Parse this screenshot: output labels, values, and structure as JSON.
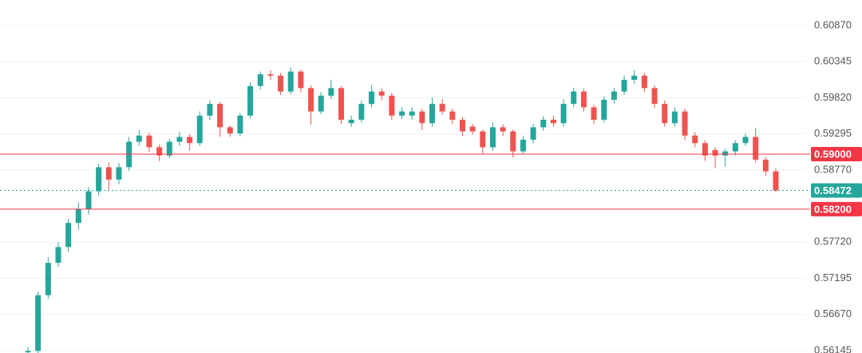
{
  "chart_data": {
    "type": "candlestick",
    "open": [
      0.5612,
      0.5614,
      0.5695,
      0.5742,
      0.5765,
      0.58,
      0.582,
      0.5846,
      0.5881,
      0.5863,
      0.5881,
      0.5918,
      0.5927,
      0.591,
      0.5898,
      0.5918,
      0.5925,
      0.5916,
      0.5956,
      0.5973,
      0.5939,
      0.593,
      0.5956,
      0.5999,
      0.6016,
      0.6014,
      0.5991,
      0.602,
      0.5996,
      0.5962,
      0.5985,
      0.5996,
      0.5945,
      0.595,
      0.5973,
      0.5991,
      0.5985,
      0.5956,
      0.5956,
      0.5962,
      0.5945,
      0.5973,
      0.5962,
      0.595,
      0.594,
      0.5933,
      0.591,
      0.5939,
      0.5933,
      0.5904,
      0.5921,
      0.5939,
      0.595,
      0.5945,
      0.5973,
      0.5991,
      0.5968,
      0.595,
      0.5979,
      0.5991,
      0.6008,
      0.6014,
      0.5996,
      0.5973,
      0.5945,
      0.5962,
      0.5927,
      0.5916,
      0.5906,
      0.5898,
      0.5904,
      0.5916,
      0.5925,
      0.5892,
      0.5875
    ],
    "high": [
      0.562,
      0.57,
      0.575,
      0.5772,
      0.5806,
      0.583,
      0.5852,
      0.5886,
      0.5888,
      0.5887,
      0.5925,
      0.5935,
      0.5931,
      0.5914,
      0.5922,
      0.5932,
      0.5929,
      0.5962,
      0.5978,
      0.5976,
      0.5942,
      0.596,
      0.6004,
      0.602,
      0.6022,
      0.6018,
      0.6026,
      0.6023,
      0.6,
      0.599,
      0.6008,
      0.5999,
      0.5956,
      0.5978,
      0.6,
      0.5996,
      0.5989,
      0.5968,
      0.5968,
      0.5966,
      0.5982,
      0.598,
      0.5966,
      0.5954,
      0.5944,
      0.5936,
      0.5946,
      0.5943,
      0.5936,
      0.5926,
      0.5944,
      0.5955,
      0.5956,
      0.598,
      0.5996,
      0.5995,
      0.5972,
      0.5984,
      0.5996,
      0.6014,
      0.6022,
      0.6018,
      0.6,
      0.5978,
      0.5968,
      0.5966,
      0.5932,
      0.592,
      0.591,
      0.5908,
      0.592,
      0.593,
      0.5938,
      0.5896,
      0.5879
    ],
    "low": [
      0.5611,
      0.5611,
      0.569,
      0.5736,
      0.5758,
      0.579,
      0.5812,
      0.584,
      0.5848,
      0.5856,
      0.5876,
      0.5912,
      0.5903,
      0.589,
      0.5894,
      0.5912,
      0.5905,
      0.5912,
      0.595,
      0.5925,
      0.5925,
      0.5926,
      0.5952,
      0.5994,
      0.6008,
      0.5986,
      0.5987,
      0.599,
      0.5943,
      0.5958,
      0.598,
      0.5944,
      0.594,
      0.5946,
      0.5968,
      0.5978,
      0.595,
      0.5951,
      0.595,
      0.5935,
      0.594,
      0.5957,
      0.5944,
      0.5926,
      0.5928,
      0.59,
      0.5905,
      0.5926,
      0.5895,
      0.59,
      0.5916,
      0.5934,
      0.594,
      0.594,
      0.5968,
      0.5962,
      0.5944,
      0.5946,
      0.5974,
      0.5986,
      0.6002,
      0.599,
      0.5967,
      0.594,
      0.594,
      0.592,
      0.591,
      0.589,
      0.588,
      0.5882,
      0.5898,
      0.5912,
      0.5888,
      0.5868,
      0.5845
    ],
    "close": [
      0.5614,
      0.5695,
      0.5742,
      0.5765,
      0.58,
      0.582,
      0.5846,
      0.5881,
      0.5863,
      0.5881,
      0.5918,
      0.5927,
      0.591,
      0.5898,
      0.5918,
      0.5925,
      0.5916,
      0.5956,
      0.5973,
      0.5939,
      0.593,
      0.5956,
      0.5999,
      0.6016,
      0.6014,
      0.5991,
      0.602,
      0.5996,
      0.5962,
      0.5985,
      0.5996,
      0.595,
      0.595,
      0.5973,
      0.5991,
      0.5985,
      0.5956,
      0.5962,
      0.5962,
      0.5945,
      0.5973,
      0.5962,
      0.595,
      0.5933,
      0.5933,
      0.591,
      0.5939,
      0.5933,
      0.5904,
      0.5921,
      0.5939,
      0.595,
      0.5945,
      0.5973,
      0.5991,
      0.5968,
      0.595,
      0.5979,
      0.5991,
      0.6008,
      0.6014,
      0.5996,
      0.5973,
      0.5945,
      0.5962,
      0.5927,
      0.5916,
      0.5898,
      0.5898,
      0.5904,
      0.5916,
      0.5925,
      0.5892,
      0.5875,
      0.58472
    ],
    "up_color": "#26a69a",
    "down_color": "#ef5350",
    "ylim": [
      0.5611,
      0.6124
    ],
    "yticks": [
      {
        "value": 0.6087,
        "label": "0.60870"
      },
      {
        "value": 0.60345,
        "label": "0.60345"
      },
      {
        "value": 0.5982,
        "label": "0.59820"
      },
      {
        "value": 0.59295,
        "label": "0.59295"
      },
      {
        "value": 0.5877,
        "label": "0.58770"
      },
      {
        "value": 0.5772,
        "label": "0.57720"
      },
      {
        "value": 0.57195,
        "label": "0.57195"
      },
      {
        "value": 0.5667,
        "label": "0.56670"
      },
      {
        "value": 0.56145,
        "label": "0.56145"
      }
    ],
    "grid": true,
    "price_lines": [
      {
        "value": 0.59,
        "label": "0.59000",
        "color": "#f23645",
        "style": "solid"
      },
      {
        "value": 0.58472,
        "label": "0.58472",
        "color": "#26a69a",
        "style": "dotted"
      },
      {
        "value": 0.582,
        "label": "0.58200",
        "color": "#f23645",
        "style": "solid"
      }
    ]
  }
}
